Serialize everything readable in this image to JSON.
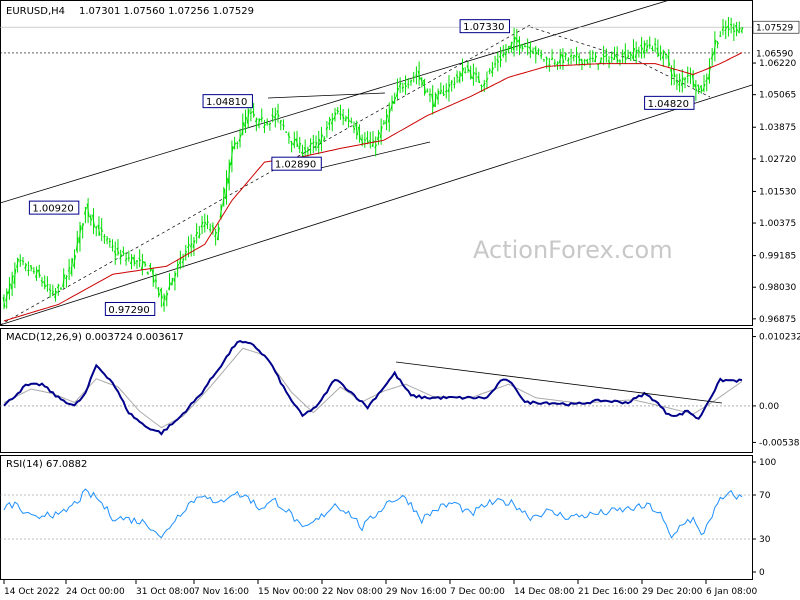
{
  "chart_data": [
    {
      "type": "candlestick",
      "title": "EURUSD,H4",
      "ohlc_readout": "1.07301 1.07560 1.07256 1.07529",
      "watermark": "ActionForex.com",
      "ylim": [
        0.9665,
        1.0845
      ],
      "y_ticks": [
        "1.06220",
        "1.05065",
        "1.03875",
        "1.02720",
        "1.01530",
        "1.00375",
        "0.99185",
        "0.98030",
        "0.96875"
      ],
      "y_tick_values": [
        1.0622,
        1.05065,
        1.03875,
        1.0272,
        1.0153,
        1.00375,
        0.99185,
        0.9803,
        0.96875
      ],
      "last_price_label": "1.07529",
      "last_price": 1.07529,
      "level_label": "1.06590",
      "level": 1.0659,
      "price_waypoints": [
        [
          0,
          0.975
        ],
        [
          5,
          0.989
        ],
        [
          12,
          0.985
        ],
        [
          18,
          0.977
        ],
        [
          24,
          0.986
        ],
        [
          30,
          1.009
        ],
        [
          36,
          0.999
        ],
        [
          42,
          0.992
        ],
        [
          48,
          0.99
        ],
        [
          54,
          0.986
        ],
        [
          58,
          0.975
        ],
        [
          62,
          0.984
        ],
        [
          68,
          0.995
        ],
        [
          74,
          1.004
        ],
        [
          78,
          0.999
        ],
        [
          84,
          1.03
        ],
        [
          90,
          1.044
        ],
        [
          94,
          1.04
        ],
        [
          100,
          1.043
        ],
        [
          106,
          1.034
        ],
        [
          110,
          1.03
        ],
        [
          116,
          1.033
        ],
        [
          122,
          1.044
        ],
        [
          128,
          1.041
        ],
        [
          132,
          1.034
        ],
        [
          136,
          1.032
        ],
        [
          140,
          1.04
        ],
        [
          146,
          1.054
        ],
        [
          152,
          1.058
        ],
        [
          158,
          1.048
        ],
        [
          164,
          1.054
        ],
        [
          170,
          1.06
        ],
        [
          176,
          1.055
        ],
        [
          182,
          1.063
        ],
        [
          188,
          1.07
        ],
        [
          194,
          1.068
        ],
        [
          200,
          1.063
        ],
        [
          208,
          1.064
        ],
        [
          216,
          1.063
        ],
        [
          224,
          1.064
        ],
        [
          232,
          1.066
        ],
        [
          238,
          1.069
        ],
        [
          244,
          1.064
        ],
        [
          248,
          1.054
        ],
        [
          252,
          1.059
        ],
        [
          256,
          1.052
        ],
        [
          258,
          1.054
        ],
        [
          262,
          1.07
        ],
        [
          266,
          1.075
        ],
        [
          272,
          1.0753
        ]
      ],
      "ma_waypoints": [
        [
          0,
          0.968
        ],
        [
          20,
          0.974
        ],
        [
          40,
          0.985
        ],
        [
          60,
          0.988
        ],
        [
          74,
          0.996
        ],
        [
          84,
          1.012
        ],
        [
          96,
          1.026
        ],
        [
          110,
          1.028
        ],
        [
          124,
          1.031
        ],
        [
          140,
          1.034
        ],
        [
          156,
          1.043
        ],
        [
          172,
          1.05
        ],
        [
          186,
          1.057
        ],
        [
          200,
          1.061
        ],
        [
          220,
          1.062
        ],
        [
          240,
          1.062
        ],
        [
          254,
          1.058
        ],
        [
          264,
          1.062
        ],
        [
          272,
          1.066
        ]
      ],
      "labels": [
        {
          "text": "1.07330",
          "value": 1.0733,
          "bar": 188
        },
        {
          "text": "1.04810",
          "value": 1.0481,
          "bar": 94
        },
        {
          "text": "1.02890",
          "value": 1.0289,
          "bar": 112
        },
        {
          "text": "1.00920",
          "value": 1.0092,
          "bar": 30
        },
        {
          "text": "0.97290",
          "value": 0.9729,
          "bar": 58
        },
        {
          "text": "1.04820",
          "value": 1.0482,
          "bar": 256
        }
      ]
    },
    {
      "type": "line",
      "title": "MACD(12,26,9) 0.003724 0.003617",
      "ylim": [
        -0.0068,
        0.0112
      ],
      "y_ticks": [
        "0.010232",
        "0.00",
        "-0.005389"
      ],
      "y_tick_values": [
        0.010232,
        0.0,
        -0.005389
      ],
      "macd_waypoints": [
        [
          0,
          0
        ],
        [
          8,
          0.003
        ],
        [
          14,
          0.0032
        ],
        [
          20,
          0.0012
        ],
        [
          26,
          0.0
        ],
        [
          30,
          0.0018
        ],
        [
          34,
          0.006
        ],
        [
          40,
          0.0035
        ],
        [
          46,
          -0.001
        ],
        [
          52,
          -0.003
        ],
        [
          58,
          -0.004
        ],
        [
          64,
          -0.002
        ],
        [
          72,
          0.0015
        ],
        [
          80,
          0.006
        ],
        [
          86,
          0.0095
        ],
        [
          92,
          0.009
        ],
        [
          98,
          0.0065
        ],
        [
          104,
          0.002
        ],
        [
          110,
          -0.0015
        ],
        [
          116,
          0.0002
        ],
        [
          122,
          0.004
        ],
        [
          128,
          0.002
        ],
        [
          134,
          -0.0002
        ],
        [
          138,
          0.0018
        ],
        [
          144,
          0.0048
        ],
        [
          150,
          0.0015
        ],
        [
          156,
          0.0012
        ],
        [
          164,
          0.0012
        ],
        [
          172,
          0.0012
        ],
        [
          178,
          0.0012
        ],
        [
          184,
          0.004
        ],
        [
          188,
          0.003
        ],
        [
          192,
          0.0005
        ],
        [
          200,
          0.0005
        ],
        [
          210,
          0.0002
        ],
        [
          220,
          0.0008
        ],
        [
          230,
          0.0005
        ],
        [
          236,
          0.0018
        ],
        [
          240,
          0.0008
        ],
        [
          244,
          -0.001
        ],
        [
          248,
          -0.0015
        ],
        [
          252,
          -0.0007
        ],
        [
          256,
          -0.002
        ],
        [
          260,
          0.001
        ],
        [
          264,
          0.0038
        ],
        [
          272,
          0.0037
        ]
      ],
      "signal_waypoints": [
        [
          0,
          0.0005
        ],
        [
          10,
          0.0025
        ],
        [
          18,
          0.0018
        ],
        [
          26,
          0.0005
        ],
        [
          34,
          0.004
        ],
        [
          42,
          0.0028
        ],
        [
          50,
          -0.0008
        ],
        [
          58,
          -0.0032
        ],
        [
          66,
          -0.0015
        ],
        [
          76,
          0.0028
        ],
        [
          88,
          0.0085
        ],
        [
          96,
          0.0075
        ],
        [
          106,
          0.002
        ],
        [
          114,
          -0.001
        ],
        [
          124,
          0.0028
        ],
        [
          132,
          0.0006
        ],
        [
          140,
          0.0022
        ],
        [
          148,
          0.0032
        ],
        [
          158,
          0.0014
        ],
        [
          172,
          0.0012
        ],
        [
          186,
          0.0032
        ],
        [
          196,
          0.0012
        ],
        [
          212,
          0.0004
        ],
        [
          232,
          0.0009
        ],
        [
          244,
          -0.0002
        ],
        [
          254,
          -0.0012
        ],
        [
          262,
          0.0008
        ],
        [
          272,
          0.0036
        ]
      ]
    },
    {
      "type": "line",
      "title": "RSI(14) 67.0882",
      "ylim": [
        0,
        100
      ],
      "y_ticks": [
        "100",
        "70",
        "30",
        "0"
      ],
      "y_tick_values": [
        100,
        70,
        30,
        0
      ],
      "rsi_waypoints": [
        [
          0,
          58
        ],
        [
          4,
          62
        ],
        [
          8,
          52
        ],
        [
          12,
          48
        ],
        [
          16,
          55
        ],
        [
          20,
          50
        ],
        [
          26,
          62
        ],
        [
          30,
          72
        ],
        [
          34,
          68
        ],
        [
          40,
          50
        ],
        [
          46,
          48
        ],
        [
          52,
          45
        ],
        [
          56,
          38
        ],
        [
          58,
          30
        ],
        [
          62,
          45
        ],
        [
          68,
          62
        ],
        [
          74,
          72
        ],
        [
          78,
          60
        ],
        [
          84,
          72
        ],
        [
          90,
          68
        ],
        [
          94,
          58
        ],
        [
          100,
          65
        ],
        [
          106,
          52
        ],
        [
          110,
          38
        ],
        [
          116,
          48
        ],
        [
          122,
          62
        ],
        [
          128,
          52
        ],
        [
          132,
          40
        ],
        [
          136,
          50
        ],
        [
          142,
          65
        ],
        [
          148,
          68
        ],
        [
          154,
          48
        ],
        [
          160,
          58
        ],
        [
          166,
          63
        ],
        [
          172,
          52
        ],
        [
          178,
          62
        ],
        [
          184,
          64
        ],
        [
          188,
          62
        ],
        [
          194,
          50
        ],
        [
          200,
          55
        ],
        [
          208,
          50
        ],
        [
          216,
          52
        ],
        [
          224,
          55
        ],
        [
          232,
          58
        ],
        [
          238,
          60
        ],
        [
          242,
          52
        ],
        [
          246,
          30
        ],
        [
          250,
          45
        ],
        [
          254,
          48
        ],
        [
          257,
          32
        ],
        [
          260,
          48
        ],
        [
          264,
          65
        ],
        [
          268,
          71
        ],
        [
          272,
          67
        ]
      ]
    }
  ],
  "x_axis_labels": [
    "14 Oct 2022",
    "24 Oct 00:00",
    "31 Oct 08:00",
    "7 Nov 16:00",
    "15 Nov 00:00",
    "22 Nov 08:00",
    "29 Nov 16:00",
    "7 Dec 00:00",
    "14 Dec 08:00",
    "21 Dec 16:00",
    "29 Dec 20:00",
    "6 Jan 08:00"
  ],
  "x_axis_bars": [
    0,
    30,
    58,
    88,
    118,
    148,
    178,
    210,
    240,
    270,
    300,
    330
  ],
  "colors": {
    "price": "#00dd00",
    "ma": "#cc0000",
    "macd": "#00008b",
    "signal": "#aaaaaa",
    "rsi": "#1e90ff",
    "grid": "#808080"
  }
}
